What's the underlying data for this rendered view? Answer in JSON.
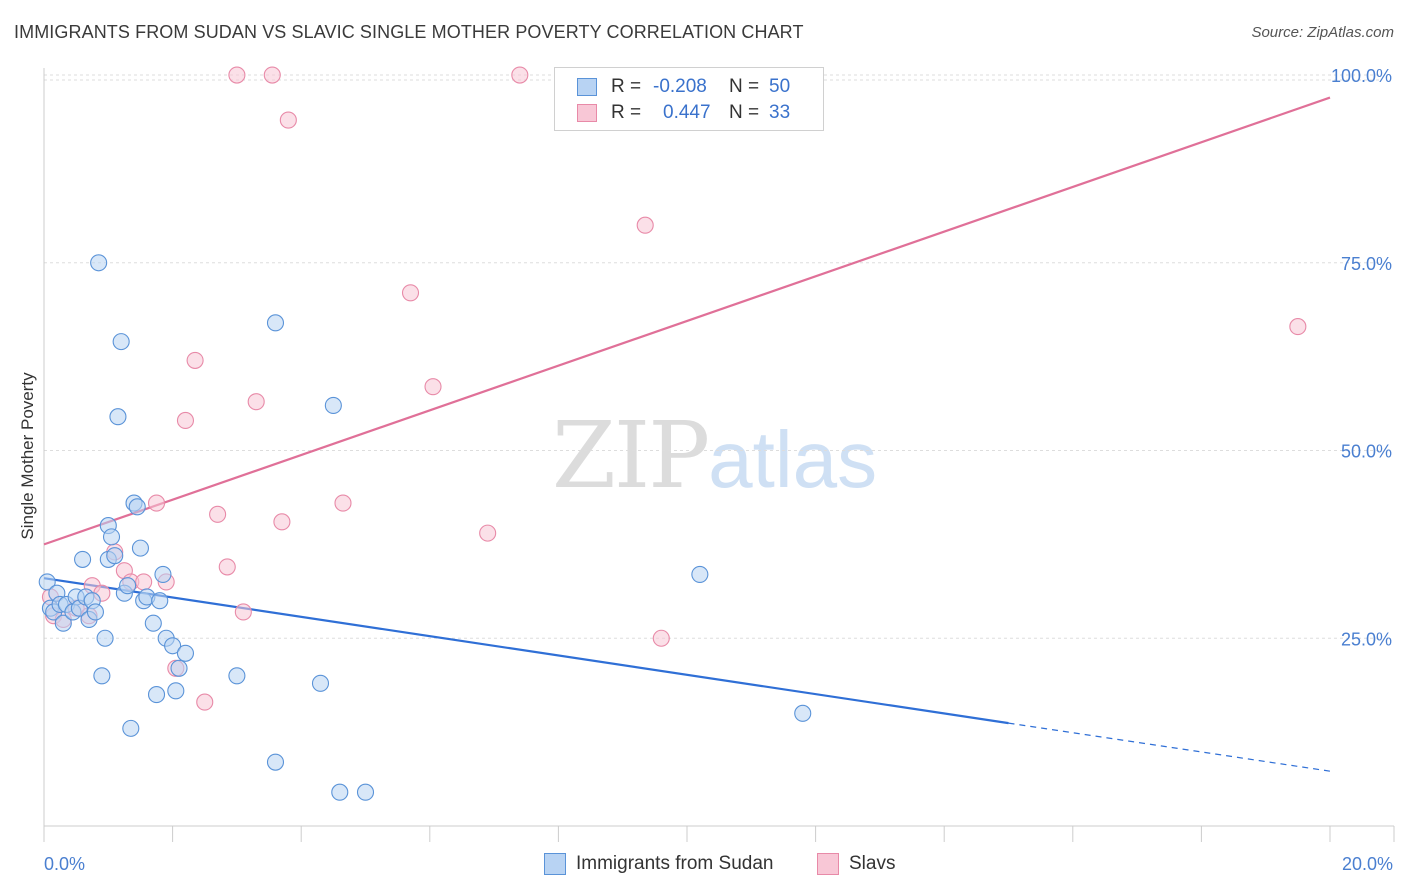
{
  "title": "IMMIGRANTS FROM SUDAN VS SLAVIC SINGLE MOTHER POVERTY CORRELATION CHART",
  "source": "Source: ZipAtlas.com",
  "watermark": {
    "zip": "ZIP",
    "atlas": "atlas"
  },
  "legend": {
    "r_label": "R =",
    "n_label": "N =",
    "series": [
      {
        "name": "Immigrants from Sudan",
        "r": "-0.208",
        "n": "50",
        "fill": "#b8d3f3",
        "stroke": "#5a93d8"
      },
      {
        "name": "Slavs",
        "r": "0.447",
        "n": "33",
        "fill": "#f8c7d6",
        "stroke": "#e88aa8"
      }
    ]
  },
  "chart_data": {
    "type": "scatter",
    "title": "IMMIGRANTS FROM SUDAN VS SLAVIC SINGLE MOTHER POVERTY CORRELATION CHART",
    "xlabel": "",
    "ylabel": "Single Mother Poverty",
    "xlim": [
      0,
      20
    ],
    "ylim": [
      0,
      102
    ],
    "x_tick_labels": [
      "0.0%",
      "20.0%"
    ],
    "y_ticks": [
      25,
      50,
      75,
      100
    ],
    "y_tick_labels": [
      "25.0%",
      "50.0%",
      "75.0%",
      "100.0%"
    ],
    "grid": true,
    "series": [
      {
        "name": "Immigrants from Sudan",
        "color": "#5a93d8",
        "fill": "#b8d3f3",
        "trend": {
          "x0": 0,
          "y0": 33.0,
          "x1": 15.0,
          "y1": 13.7,
          "dash_to_x": 20.0,
          "dash_to_y": 7.3,
          "color": "#2f6fd6"
        },
        "points": [
          [
            0.05,
            32.5
          ],
          [
            0.1,
            29.0
          ],
          [
            0.15,
            28.5
          ],
          [
            0.2,
            31.0
          ],
          [
            0.25,
            29.5
          ],
          [
            0.3,
            27.0
          ],
          [
            0.35,
            29.5
          ],
          [
            0.45,
            28.5
          ],
          [
            0.5,
            30.5
          ],
          [
            0.55,
            29.0
          ],
          [
            0.6,
            35.5
          ],
          [
            0.65,
            30.5
          ],
          [
            0.7,
            27.5
          ],
          [
            0.75,
            30.0
          ],
          [
            0.8,
            28.5
          ],
          [
            0.85,
            75.0
          ],
          [
            0.9,
            20.0
          ],
          [
            0.95,
            25.0
          ],
          [
            1.0,
            40.0
          ],
          [
            1.0,
            35.5
          ],
          [
            1.05,
            38.5
          ],
          [
            1.1,
            36.0
          ],
          [
            1.15,
            54.5
          ],
          [
            1.2,
            64.5
          ],
          [
            1.25,
            31.0
          ],
          [
            1.3,
            32.0
          ],
          [
            1.35,
            13.0
          ],
          [
            1.4,
            43.0
          ],
          [
            1.45,
            42.5
          ],
          [
            1.5,
            37.0
          ],
          [
            1.55,
            30.0
          ],
          [
            1.6,
            30.5
          ],
          [
            1.7,
            27.0
          ],
          [
            1.75,
            17.5
          ],
          [
            1.8,
            30.0
          ],
          [
            1.85,
            33.5
          ],
          [
            1.9,
            25.0
          ],
          [
            2.0,
            24.0
          ],
          [
            2.05,
            18.0
          ],
          [
            2.1,
            21.0
          ],
          [
            2.2,
            23.0
          ],
          [
            3.0,
            20.0
          ],
          [
            3.6,
            67.0
          ],
          [
            3.6,
            8.5
          ],
          [
            4.3,
            19.0
          ],
          [
            4.5,
            56.0
          ],
          [
            4.6,
            4.5
          ],
          [
            5.0,
            4.5
          ],
          [
            10.2,
            33.5
          ],
          [
            11.8,
            15.0
          ]
        ]
      },
      {
        "name": "Slavs",
        "color": "#e88aa8",
        "fill": "#f8c7d6",
        "trend": {
          "x0": 0,
          "y0": 37.5,
          "x1": 20.0,
          "y1": 97.0,
          "color": "#e07098"
        },
        "points": [
          [
            0.1,
            30.5
          ],
          [
            0.15,
            28.0
          ],
          [
            0.3,
            27.5
          ],
          [
            0.5,
            29.0
          ],
          [
            0.7,
            28.0
          ],
          [
            0.75,
            32.0
          ],
          [
            0.9,
            31.0
          ],
          [
            1.1,
            36.5
          ],
          [
            1.25,
            34.0
          ],
          [
            1.35,
            32.5
          ],
          [
            1.55,
            32.5
          ],
          [
            1.75,
            43.0
          ],
          [
            1.9,
            32.5
          ],
          [
            2.05,
            21.0
          ],
          [
            2.2,
            54.0
          ],
          [
            2.35,
            62.0
          ],
          [
            2.5,
            16.5
          ],
          [
            2.7,
            41.5
          ],
          [
            2.85,
            34.5
          ],
          [
            3.0,
            100.0
          ],
          [
            3.1,
            28.5
          ],
          [
            3.3,
            56.5
          ],
          [
            3.55,
            100.0
          ],
          [
            3.7,
            40.5
          ],
          [
            3.8,
            94.0
          ],
          [
            4.65,
            43.0
          ],
          [
            5.7,
            71.0
          ],
          [
            6.05,
            58.5
          ],
          [
            6.9,
            39.0
          ],
          [
            7.4,
            100.0
          ],
          [
            9.35,
            80.0
          ],
          [
            9.6,
            25.0
          ],
          [
            19.5,
            66.5
          ]
        ]
      }
    ]
  }
}
